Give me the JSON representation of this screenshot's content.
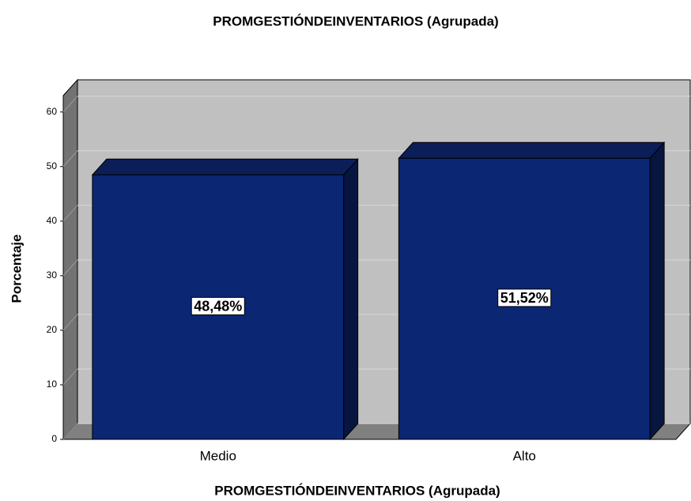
{
  "chart_data": {
    "type": "bar3d",
    "title": "PROMGESTIÓNDEINVENTARIOS (Agrupada)",
    "x_label": "PROMGESTIÓNDEINVENTARIOS (Agrupada)",
    "y_label": "Porcentaje",
    "categories": [
      "Medio",
      "Alto"
    ],
    "values": [
      48.48,
      51.52
    ],
    "value_labels": [
      "48,48%",
      "51,52%"
    ],
    "color": "#0b2673",
    "ylim": [
      0,
      63
    ],
    "yticks": [
      0,
      10,
      20,
      30,
      40,
      50,
      60
    ],
    "grid": true
  }
}
